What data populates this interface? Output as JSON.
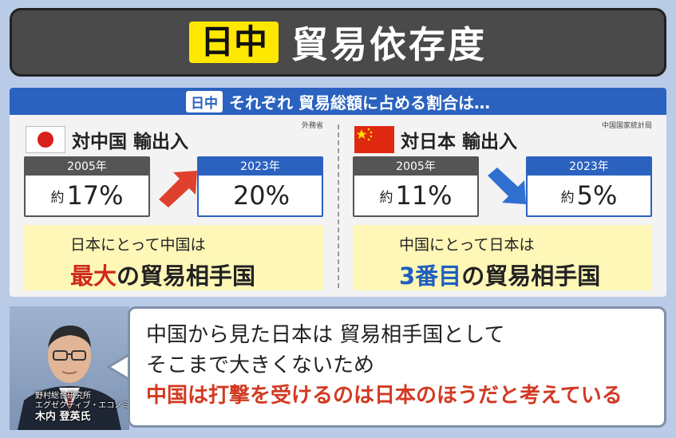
{
  "title": {
    "tag": "日中",
    "main": "貿易依存度"
  },
  "panel": {
    "header_tag": "日中",
    "header_text": "それぞれ 貿易総額に占める割合は…",
    "left": {
      "title": "対中国 輸出入",
      "source": "外務省",
      "flag_icon": "japan-flag-icon",
      "old": {
        "year": "2005年",
        "approx": "約",
        "value": "17%"
      },
      "new": {
        "year": "2023年",
        "approx": "",
        "value": "20%"
      },
      "trend": "up",
      "box_line1": "日本にとって中国は",
      "box_highlight": "最大",
      "box_rest": "の貿易相手国"
    },
    "right": {
      "title": "対日本 輸出入",
      "source": "中国国家統計局",
      "flag_icon": "china-flag-icon",
      "old": {
        "year": "2005年",
        "approx": "約",
        "value": "11%"
      },
      "new": {
        "year": "2023年",
        "approx": "約",
        "value": "5%"
      },
      "trend": "down",
      "box_line1": "中国にとって日本は",
      "box_highlight": "3番目",
      "box_rest": "の貿易相手国"
    }
  },
  "speaker": {
    "org": "野村総合研究所",
    "role": "エグゼクティブ・エコノミスト",
    "name": "木内 登英氏"
  },
  "quote": {
    "line1": "中国から見た日本は 貿易相手国として",
    "line2": "そこまで大きくないため",
    "line3": "中国は打撃を受けるのは日本のほうだと考えている"
  },
  "colors": {
    "accent_blue": "#2b62bf",
    "accent_red": "#cf2a1a",
    "title_yellow": "#ffe800",
    "box_yellow": "#fff7b8",
    "background": "#b9cbe7"
  }
}
